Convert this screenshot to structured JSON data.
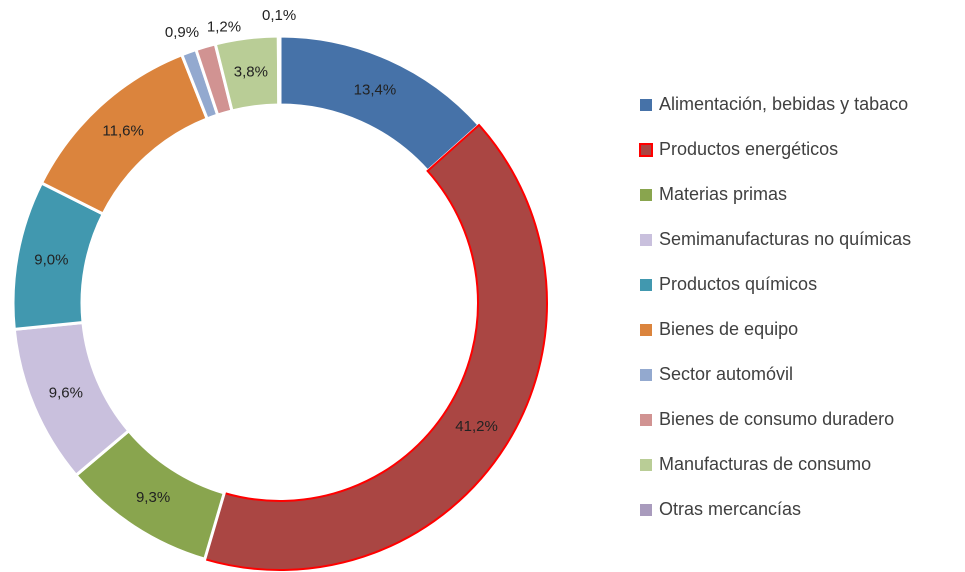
{
  "chart_data": {
    "type": "donut",
    "categories": [
      "Alimentación, bebidas y tabaco",
      "Productos energéticos",
      "Materias primas",
      "Semimanufacturas no químicas",
      "Productos químicos",
      "Bienes de equipo",
      "Sector automóvil",
      "Bienes de consumo duradero",
      "Manufacturas de consumo",
      "Otras mercancías"
    ],
    "values": [
      13.4,
      41.2,
      9.3,
      9.6,
      9.0,
      11.6,
      0.9,
      1.2,
      3.8,
      0.1
    ],
    "value_labels": [
      "13,4%",
      "41,2%",
      "9,3%",
      "9,6%",
      "9,0%",
      "11,6%",
      "0,9%",
      "1,2%",
      "3,8%",
      "0,1%"
    ],
    "colors": [
      "#4672a8",
      "#aa4643",
      "#89a54e",
      "#c9c0dd",
      "#4198af",
      "#db843d",
      "#93a9cf",
      "#d19392",
      "#b9cd96",
      "#a99bbd"
    ],
    "highlight": 1,
    "highlight_color": "#ff0000",
    "legend": "right"
  }
}
